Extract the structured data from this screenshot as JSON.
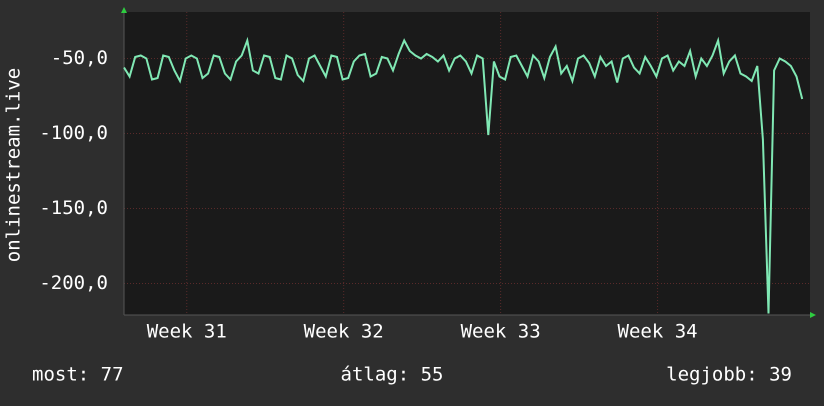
{
  "chart_data": {
    "type": "line",
    "y_label": "onlinestream.live",
    "x": [
      0,
      0.25,
      0.5,
      0.75,
      1,
      1.25,
      1.5,
      1.75,
      2,
      2.25,
      2.5,
      2.75,
      3,
      3.25,
      3.5,
      3.75,
      4,
      4.25,
      4.5,
      4.75,
      5,
      5.25,
      5.5,
      5.75,
      6,
      6.25,
      6.5,
      6.75,
      7,
      7.25,
      7.5,
      7.75,
      8,
      8.25,
      8.5,
      8.75,
      9,
      9.25,
      9.5,
      9.75,
      10,
      10.25,
      10.5,
      10.75,
      11,
      11.25,
      11.5,
      11.75,
      12,
      12.25,
      12.5,
      12.75,
      13,
      13.25,
      13.5,
      13.75,
      14,
      14.25,
      14.5,
      14.75,
      15,
      15.25,
      15.5,
      15.75,
      16,
      16.25,
      16.5,
      16.75,
      17,
      17.25,
      17.5,
      17.75,
      18,
      18.25,
      18.5,
      18.75,
      19,
      19.25,
      19.5,
      19.75,
      20,
      20.25,
      20.5,
      20.75,
      21,
      21.25,
      21.5,
      21.75,
      22,
      22.25,
      22.5,
      22.75,
      23,
      23.25,
      23.5,
      23.75,
      24,
      24.25,
      24.5,
      24.75,
      25,
      25.25,
      25.5,
      25.75,
      26,
      26.25,
      26.5,
      26.75,
      27,
      27.25,
      27.5,
      27.75,
      28,
      28.25,
      28.5,
      28.75,
      29,
      29.25,
      29.5,
      29.75,
      30,
      30.25
    ],
    "series": [
      {
        "color": "#80e8b4",
        "values": [
          -56,
          -62,
          -49,
          -48,
          -50,
          -64,
          -63,
          -48,
          -49,
          -58,
          -65,
          -50,
          -48,
          -50,
          -63,
          -60,
          -48,
          -49,
          -60,
          -64,
          -52,
          -48,
          -38,
          -58,
          -60,
          -48,
          -49,
          -63,
          -64,
          -48,
          -50,
          -61,
          -65,
          -50,
          -48,
          -55,
          -62,
          -48,
          -49,
          -64,
          -63,
          -52,
          -48,
          -47,
          -62,
          -60,
          -49,
          -50,
          -58,
          -47,
          -38,
          -45,
          -48,
          -50,
          -47,
          -49,
          -52,
          -48,
          -58,
          -50,
          -48,
          -52,
          -60,
          -48,
          -50,
          -101,
          -52,
          -62,
          -64,
          -49,
          -48,
          -55,
          -62,
          -48,
          -52,
          -63,
          -49,
          -42,
          -60,
          -55,
          -65,
          -50,
          -48,
          -53,
          -62,
          -49,
          -55,
          -52,
          -66,
          -50,
          -48,
          -56,
          -60,
          -49,
          -55,
          -62,
          -50,
          -48,
          -58,
          -52,
          -55,
          -45,
          -62,
          -50,
          -55,
          -48,
          -38,
          -60,
          -52,
          -48,
          -60,
          -62,
          -65,
          -55,
          -104,
          -220,
          -58,
          -50,
          -52,
          -55,
          -62,
          -77
        ]
      }
    ],
    "xlim": [
      0,
      30.6
    ],
    "xticks": [
      {
        "value": 2.8,
        "label": "Week 31"
      },
      {
        "value": 9.8,
        "label": "Week 32"
      },
      {
        "value": 16.8,
        "label": "Week 33"
      },
      {
        "value": 23.8,
        "label": "Week 34"
      }
    ],
    "ylim": [
      -221,
      -19
    ],
    "yticks": [
      {
        "value": -50,
        "label": "-50,0"
      },
      {
        "value": -100,
        "label": "-100,0"
      },
      {
        "value": -150,
        "label": "-150,0"
      },
      {
        "value": -200,
        "label": "-200,0"
      }
    ],
    "grid": true,
    "summary": [
      "most: 77",
      "átlag: 55",
      "legjobb: 39"
    ]
  }
}
